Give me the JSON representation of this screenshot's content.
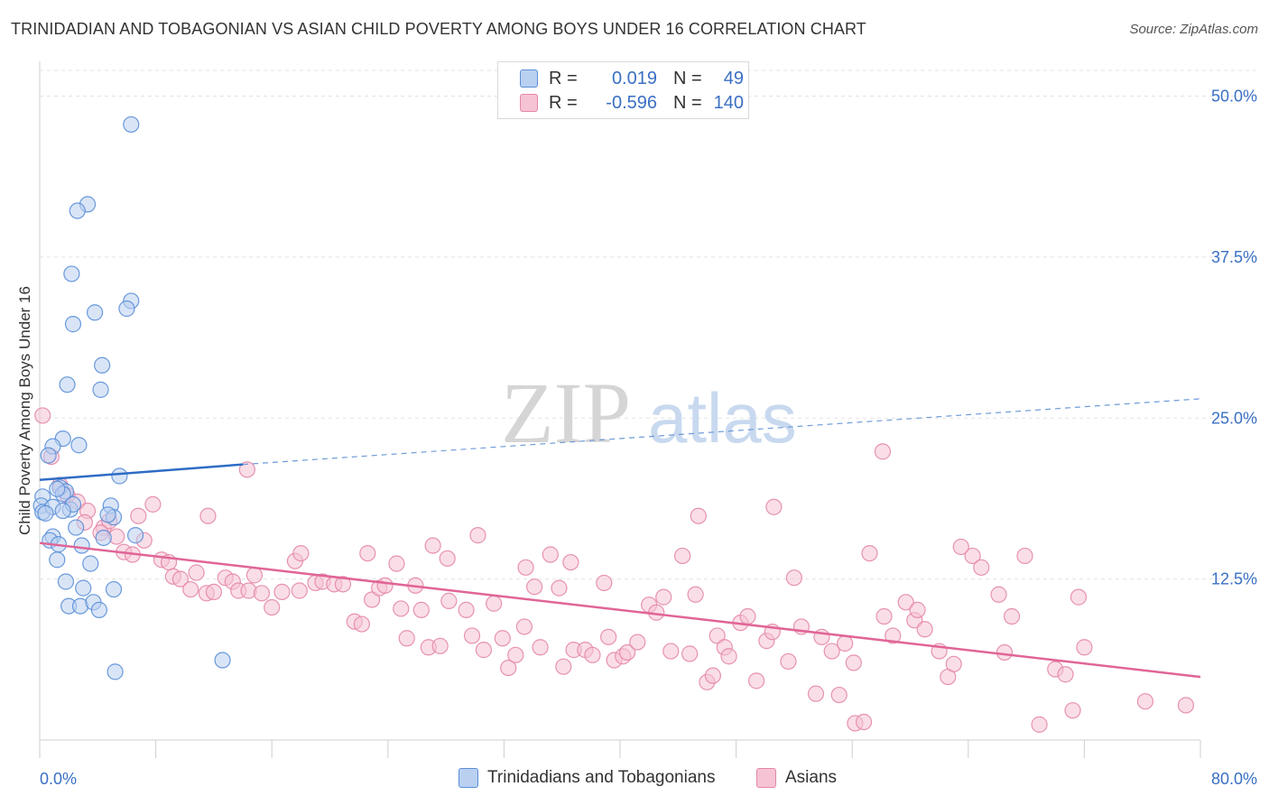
{
  "title": "TRINIDADIAN AND TOBAGONIAN VS ASIAN CHILD POVERTY AMONG BOYS UNDER 16 CORRELATION CHART",
  "source": "Source: ZipAtlas.com",
  "watermark": {
    "zip": "ZIP",
    "atlas": "atlas"
  },
  "legend": {
    "r_label": "R =",
    "n_label": "N =",
    "rows": [
      {
        "r": "0.019",
        "n": "49"
      },
      {
        "r": "-0.596",
        "n": "140"
      }
    ]
  },
  "chart_data": {
    "type": "scatter",
    "title": "TRINIDADIAN AND TOBAGONIAN VS ASIAN CHILD POVERTY AMONG BOYS UNDER 16 CORRELATION CHART",
    "xlabel": "",
    "ylabel": "Child Poverty Among Boys Under 16",
    "xlim": [
      0,
      80
    ],
    "ylim": [
      0,
      52
    ],
    "x_tick_labels": [
      "0.0%",
      "80.0%"
    ],
    "y_ticks": [
      {
        "value": 12.5,
        "label": "12.5%"
      },
      {
        "value": 25.0,
        "label": "25.0%"
      },
      {
        "value": 37.5,
        "label": "37.5%"
      },
      {
        "value": 50.0,
        "label": "50.0%"
      }
    ],
    "grid": true,
    "legend_position": "top-center",
    "series": [
      {
        "name": "Trinidadians and Tobagonians",
        "color": "#5b8fd8",
        "fill": "#b9d0f1",
        "r": 0.019,
        "n": 49,
        "trend": {
          "x0": 0,
          "y0": 20.2,
          "x1": 14.0,
          "y1": 21.4,
          "dashed_to_x": 80,
          "dashed_to_y": 26.5
        },
        "points": [
          [
            6.3,
            47.8
          ],
          [
            3.3,
            41.6
          ],
          [
            2.6,
            41.1
          ],
          [
            2.2,
            36.2
          ],
          [
            2.3,
            32.3
          ],
          [
            3.8,
            33.2
          ],
          [
            6.3,
            34.1
          ],
          [
            6.0,
            33.5
          ],
          [
            1.9,
            27.6
          ],
          [
            4.3,
            29.1
          ],
          [
            4.2,
            27.2
          ],
          [
            1.6,
            23.4
          ],
          [
            0.9,
            22.8
          ],
          [
            2.7,
            22.9
          ],
          [
            5.5,
            20.5
          ],
          [
            0.6,
            22.1
          ],
          [
            1.4,
            19.6
          ],
          [
            1.8,
            19.3
          ],
          [
            1.6,
            19.1
          ],
          [
            0.2,
            18.9
          ],
          [
            0.1,
            18.2
          ],
          [
            0.2,
            17.7
          ],
          [
            0.9,
            18.1
          ],
          [
            2.1,
            17.9
          ],
          [
            2.3,
            18.3
          ],
          [
            4.9,
            18.2
          ],
          [
            5.1,
            17.3
          ],
          [
            4.7,
            17.5
          ],
          [
            2.5,
            16.5
          ],
          [
            4.4,
            15.7
          ],
          [
            6.6,
            15.9
          ],
          [
            0.9,
            15.8
          ],
          [
            0.7,
            15.5
          ],
          [
            1.3,
            15.2
          ],
          [
            2.9,
            15.1
          ],
          [
            1.2,
            14.0
          ],
          [
            3.5,
            13.7
          ],
          [
            1.8,
            12.3
          ],
          [
            3.0,
            11.8
          ],
          [
            5.1,
            11.7
          ],
          [
            2.0,
            10.4
          ],
          [
            2.8,
            10.4
          ],
          [
            3.7,
            10.7
          ],
          [
            4.1,
            10.1
          ],
          [
            1.6,
            17.8
          ],
          [
            0.4,
            17.6
          ],
          [
            12.6,
            6.2
          ],
          [
            5.2,
            5.3
          ],
          [
            1.2,
            19.5
          ]
        ]
      },
      {
        "name": "Asians",
        "color": "#e487a8",
        "fill": "#f6c3d4",
        "r": -0.596,
        "n": 140,
        "trend": {
          "x0": 0,
          "y0": 15.3,
          "x1": 80,
          "y1": 4.9
        },
        "points": [
          [
            0.2,
            25.2
          ],
          [
            0.8,
            22.0
          ],
          [
            1.4,
            19.8
          ],
          [
            1.9,
            19.0
          ],
          [
            2.6,
            18.5
          ],
          [
            3.3,
            17.8
          ],
          [
            3.1,
            16.9
          ],
          [
            4.4,
            16.5
          ],
          [
            4.8,
            17.0
          ],
          [
            4.2,
            16.1
          ],
          [
            5.3,
            15.8
          ],
          [
            6.8,
            17.4
          ],
          [
            7.8,
            18.3
          ],
          [
            7.2,
            15.5
          ],
          [
            5.8,
            14.6
          ],
          [
            6.4,
            14.4
          ],
          [
            8.4,
            14.0
          ],
          [
            8.9,
            13.8
          ],
          [
            9.2,
            12.7
          ],
          [
            9.7,
            12.5
          ],
          [
            10.4,
            11.7
          ],
          [
            10.8,
            13.0
          ],
          [
            11.5,
            11.4
          ],
          [
            12.0,
            11.5
          ],
          [
            11.6,
            17.4
          ],
          [
            12.8,
            12.6
          ],
          [
            13.3,
            12.3
          ],
          [
            13.7,
            11.6
          ],
          [
            14.4,
            11.6
          ],
          [
            14.8,
            12.8
          ],
          [
            15.3,
            11.4
          ],
          [
            16.0,
            10.3
          ],
          [
            16.7,
            11.5
          ],
          [
            17.9,
            11.6
          ],
          [
            17.6,
            13.9
          ],
          [
            18.0,
            14.5
          ],
          [
            19.0,
            12.2
          ],
          [
            19.5,
            12.3
          ],
          [
            20.3,
            12.1
          ],
          [
            20.9,
            12.1
          ],
          [
            21.7,
            9.2
          ],
          [
            22.2,
            9.0
          ],
          [
            22.6,
            14.5
          ],
          [
            22.9,
            10.9
          ],
          [
            23.4,
            11.8
          ],
          [
            23.8,
            12.0
          ],
          [
            24.6,
            13.7
          ],
          [
            24.9,
            10.2
          ],
          [
            25.3,
            7.9
          ],
          [
            25.9,
            12.0
          ],
          [
            26.3,
            10.1
          ],
          [
            26.8,
            7.2
          ],
          [
            27.6,
            7.3
          ],
          [
            27.1,
            15.1
          ],
          [
            28.1,
            14.1
          ],
          [
            28.2,
            10.8
          ],
          [
            29.4,
            10.1
          ],
          [
            29.8,
            8.1
          ],
          [
            30.2,
            15.9
          ],
          [
            30.6,
            7.0
          ],
          [
            31.3,
            10.6
          ],
          [
            31.9,
            7.9
          ],
          [
            32.3,
            5.6
          ],
          [
            32.8,
            6.6
          ],
          [
            33.4,
            8.8
          ],
          [
            33.5,
            13.4
          ],
          [
            34.1,
            11.9
          ],
          [
            34.5,
            7.2
          ],
          [
            35.2,
            14.4
          ],
          [
            35.8,
            11.8
          ],
          [
            36.1,
            5.7
          ],
          [
            36.6,
            13.8
          ],
          [
            36.8,
            7.0
          ],
          [
            37.6,
            7.0
          ],
          [
            38.1,
            6.6
          ],
          [
            38.9,
            12.2
          ],
          [
            39.2,
            8.0
          ],
          [
            39.6,
            6.2
          ],
          [
            40.2,
            6.5
          ],
          [
            40.5,
            6.8
          ],
          [
            41.2,
            7.6
          ],
          [
            42.0,
            10.5
          ],
          [
            42.5,
            9.9
          ],
          [
            43.0,
            11.1
          ],
          [
            43.5,
            6.9
          ],
          [
            44.3,
            14.3
          ],
          [
            44.8,
            6.7
          ],
          [
            45.2,
            11.3
          ],
          [
            45.4,
            17.4
          ],
          [
            46.0,
            4.5
          ],
          [
            46.4,
            5.0
          ],
          [
            46.7,
            8.1
          ],
          [
            47.2,
            7.2
          ],
          [
            47.5,
            6.5
          ],
          [
            48.3,
            9.1
          ],
          [
            48.8,
            9.6
          ],
          [
            49.4,
            4.6
          ],
          [
            50.1,
            7.7
          ],
          [
            50.5,
            8.4
          ],
          [
            50.6,
            18.1
          ],
          [
            51.6,
            6.1
          ],
          [
            52.0,
            12.6
          ],
          [
            52.5,
            8.8
          ],
          [
            53.5,
            3.6
          ],
          [
            53.9,
            8.0
          ],
          [
            54.6,
            6.9
          ],
          [
            55.1,
            3.5
          ],
          [
            55.5,
            7.5
          ],
          [
            56.1,
            6.0
          ],
          [
            56.2,
            1.3
          ],
          [
            56.8,
            1.4
          ],
          [
            57.2,
            14.5
          ],
          [
            58.1,
            22.4
          ],
          [
            58.2,
            9.6
          ],
          [
            58.8,
            8.1
          ],
          [
            59.7,
            10.7
          ],
          [
            60.3,
            9.3
          ],
          [
            60.5,
            10.1
          ],
          [
            61.0,
            8.6
          ],
          [
            62.0,
            6.9
          ],
          [
            62.6,
            4.9
          ],
          [
            63.0,
            5.9
          ],
          [
            63.5,
            15.0
          ],
          [
            64.3,
            14.3
          ],
          [
            64.9,
            13.4
          ],
          [
            66.1,
            11.3
          ],
          [
            67.0,
            9.6
          ],
          [
            66.5,
            6.8
          ],
          [
            67.9,
            14.3
          ],
          [
            68.9,
            1.2
          ],
          [
            70.0,
            5.5
          ],
          [
            70.7,
            5.1
          ],
          [
            71.2,
            2.3
          ],
          [
            72.0,
            7.2
          ],
          [
            71.6,
            11.1
          ],
          [
            76.2,
            3.0
          ],
          [
            79.0,
            2.7
          ],
          [
            14.3,
            21.0
          ]
        ]
      }
    ]
  },
  "bottom_legend": [
    {
      "label": "Trinidadians and Tobagonians"
    },
    {
      "label": "Asians"
    }
  ]
}
